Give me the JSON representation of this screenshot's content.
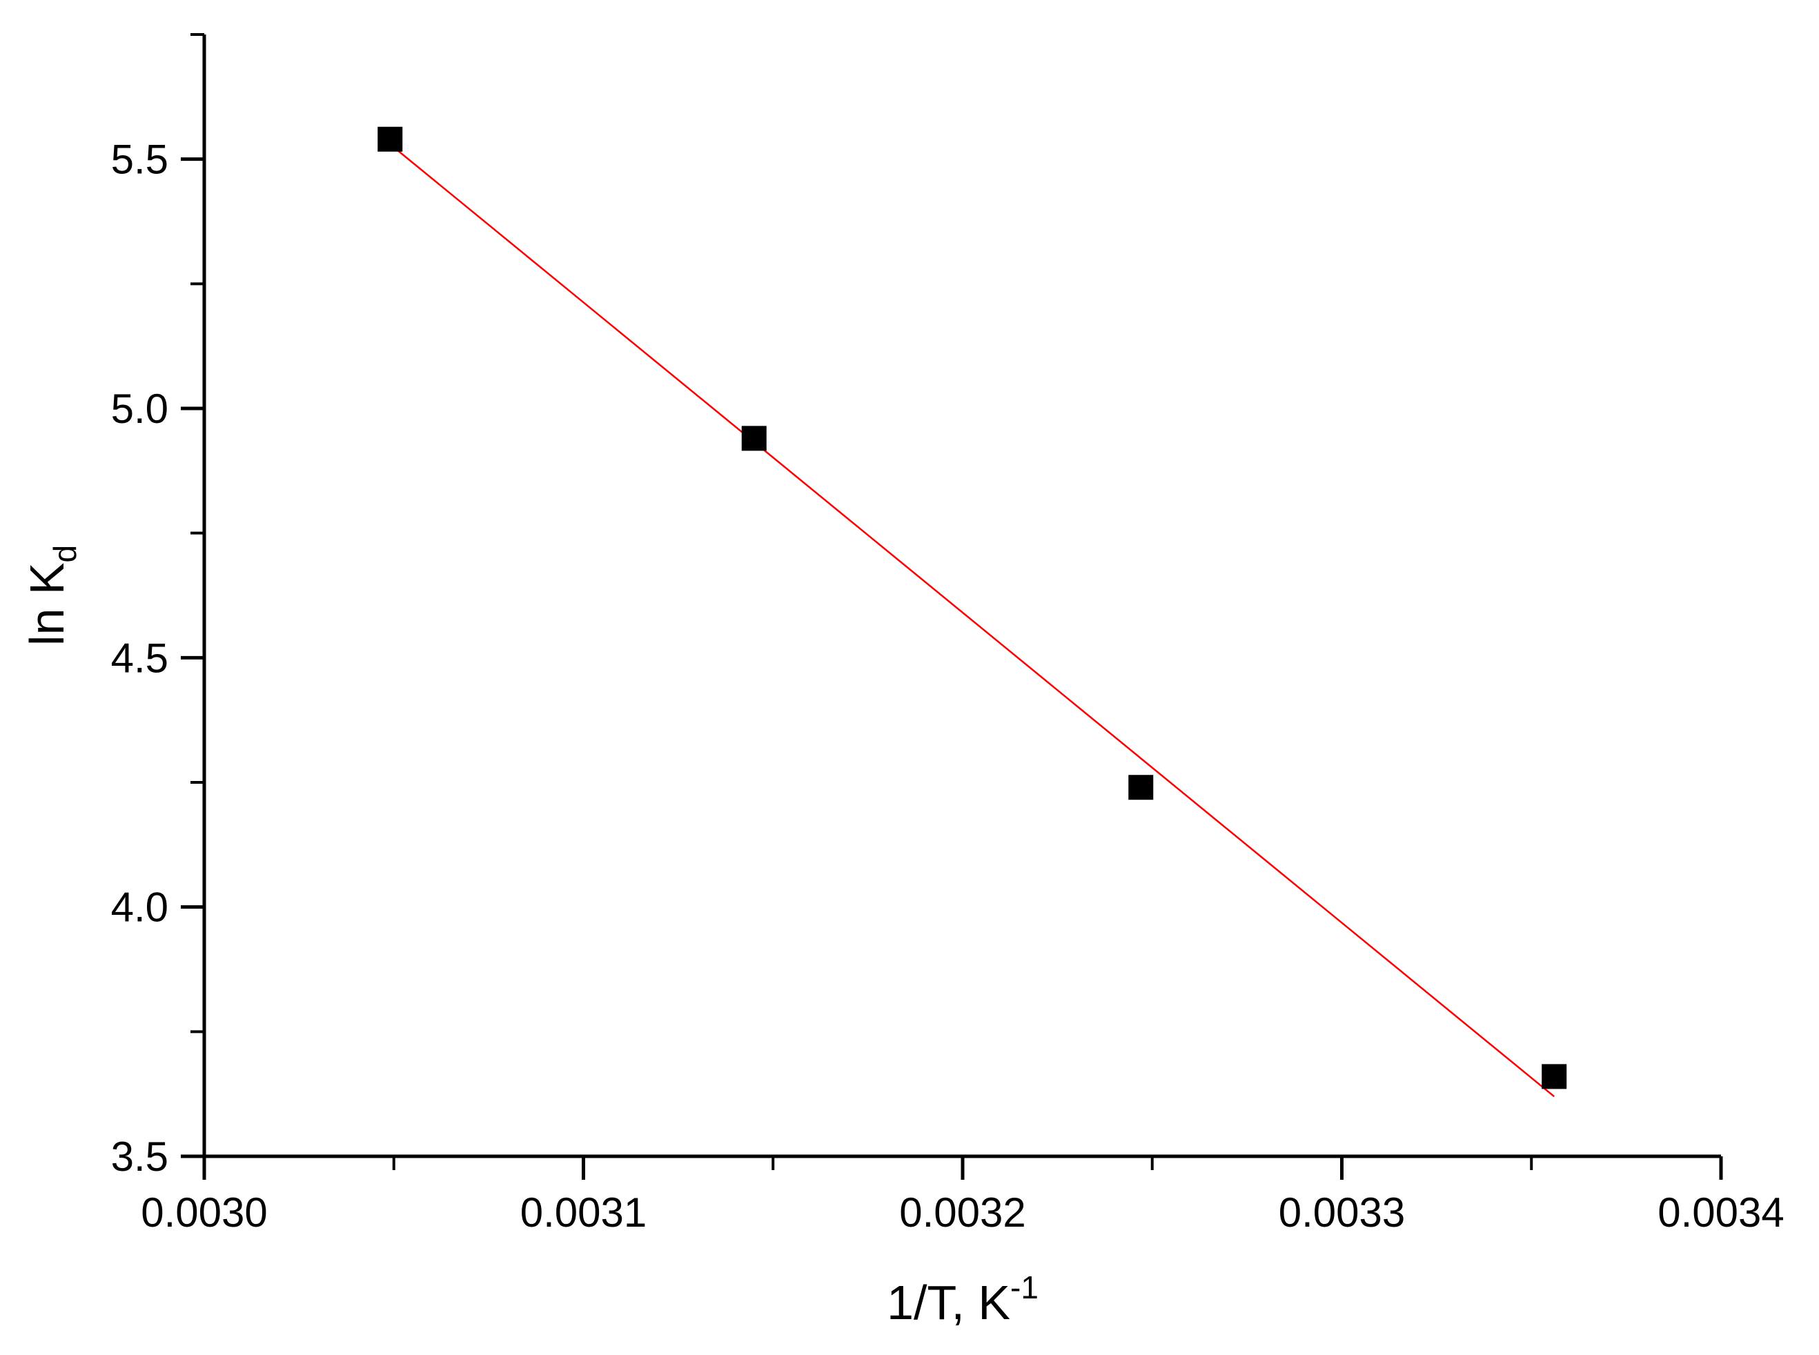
{
  "chart_data": {
    "type": "scatter",
    "xlabel_main": "1/T, K",
    "xlabel_sup": "-1",
    "ylabel_main": "ln K",
    "ylabel_sub": "d",
    "xlim": [
      0.003,
      0.0034
    ],
    "ylim": [
      3.5,
      5.75
    ],
    "xticks": [
      0.003,
      0.0031,
      0.0032,
      0.0033,
      0.0034
    ],
    "xtick_labels": [
      "0.0030",
      "0.0031",
      "0.0032",
      "0.0033",
      "0.0034"
    ],
    "yticks": [
      3.5,
      4.0,
      4.5,
      5.0,
      5.5
    ],
    "ytick_labels": [
      "3.5",
      "4.0",
      "4.5",
      "5.0",
      "5.5"
    ],
    "grid": false,
    "series": [
      {
        "marker": "square",
        "color": "#000000",
        "x": [
          0.003049,
          0.003145,
          0.003247,
          0.003356
        ],
        "y": [
          5.54,
          4.94,
          4.24,
          3.66
        ]
      }
    ],
    "fit_line": {
      "color": "#ff0000",
      "x": [
        0.003049,
        0.003356
      ],
      "y": [
        5.53,
        3.62
      ]
    }
  }
}
